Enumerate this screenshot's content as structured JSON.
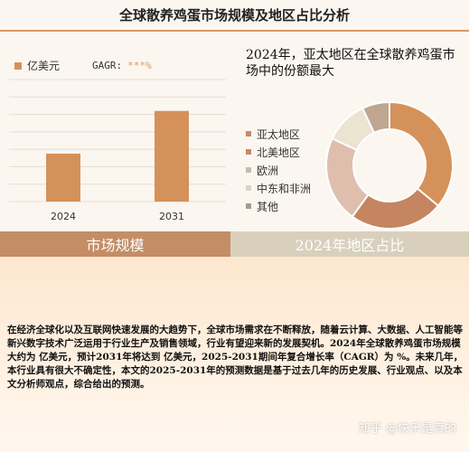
{
  "page": {
    "title": "全球散养鸡蛋市场规模及地区占比分析",
    "band_left": "市场规模",
    "band_right": "2024年地区占比",
    "right_heading": "2024年，亚太地区在全球散养鸡蛋市场中的份额最大",
    "body_text": "在经济全球化以及互联网快速发展的大趋势下，全球市场需求在不断释放，随着云计算、大数据、人工智能等新兴数字技术广泛运用于行业生产及销售领域，行业有望迎来新的发展契机。2024年全球散养鸡蛋市场规模大约为 亿美元，预计2031年将达到 亿美元，2025-2031期间年复合增长率（CAGR）为 %。未来几年，本行业具有很大不确定性，本文的2025-2031年的预测数据是基于过去几年的历史发展、行业观点、以及本文分析师观点，综合给出的预测。",
    "watermark": "知乎 @快乐是真的"
  },
  "colors": {
    "bar": "#d5915a",
    "accent": "#d99a62",
    "band_left": "#c48d66",
    "band_right": "#d8d0bd"
  },
  "chart_data": [
    {
      "type": "bar",
      "legend": "亿美元",
      "cagr_label": "GAGR:",
      "cagr_value": "***%",
      "categories": [
        "2024",
        "2031"
      ],
      "values": [
        55,
        104
      ],
      "ylim": [
        0,
        140
      ],
      "grid": true
    },
    {
      "type": "pie",
      "labels": [
        "亚太地区",
        "北美地区",
        "欧洲",
        "中东和非洲",
        "其他"
      ],
      "values": [
        36,
        24,
        22,
        11,
        7
      ],
      "colors": [
        "#d5915a",
        "#c48560",
        "#dfbeae",
        "#ece3d2",
        "#bfa690"
      ],
      "legend_colors": [
        "#c48d66",
        "#c48d66",
        "#c8b8ad",
        "#dcd3c3",
        "#a89a8a"
      ]
    }
  ]
}
